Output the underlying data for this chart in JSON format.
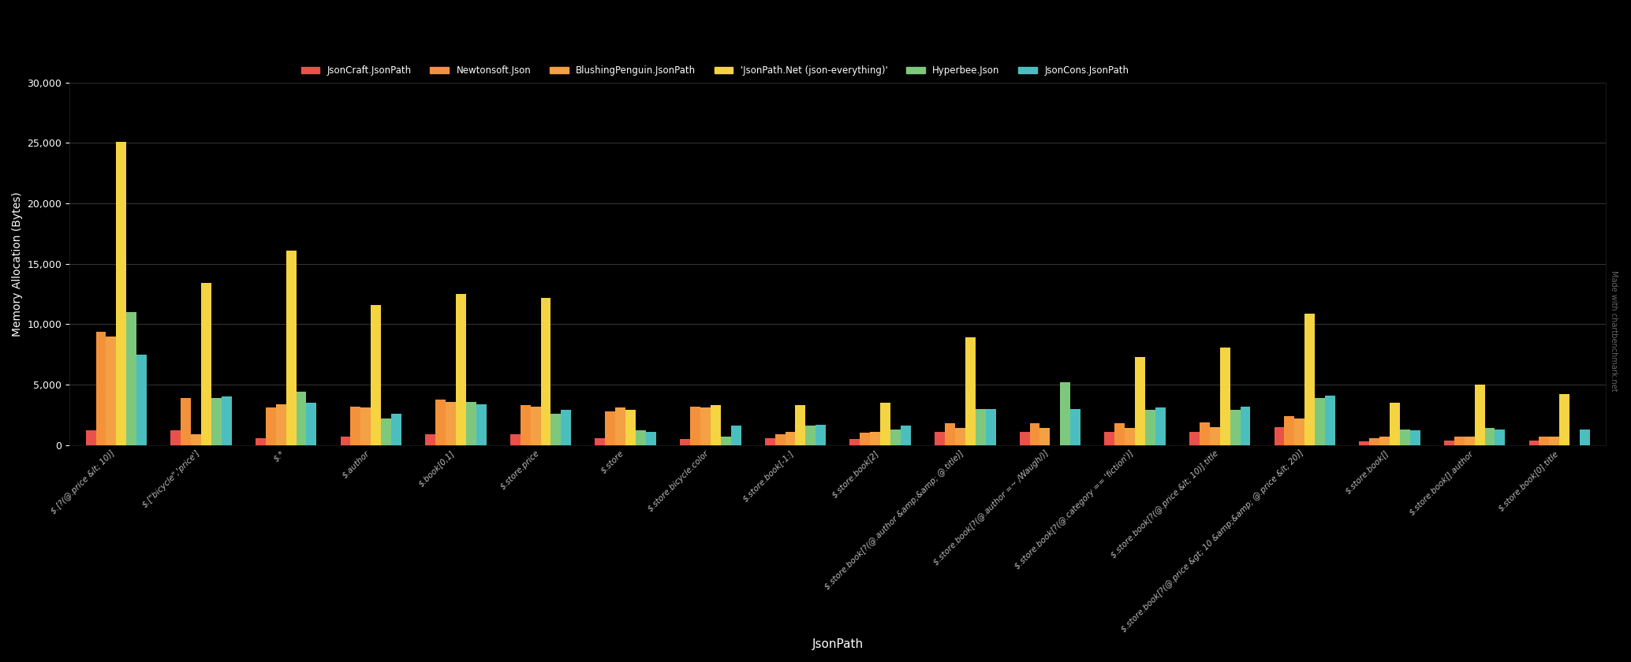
{
  "title": "",
  "xlabel": "JsonPath",
  "ylabel": "Memory Allocation (Bytes)",
  "watermark": "Made with chartbenchmark.net",
  "ylim": [
    0,
    30000
  ],
  "yticks": [
    0,
    5000,
    10000,
    15000,
    20000,
    25000,
    30000
  ],
  "background_color": "#000000",
  "text_color": "#ffffff",
  "grid_color": "#404040",
  "series": [
    {
      "name": "JsonCraft.JsonPath",
      "color": "#e8524a"
    },
    {
      "name": "Newtonsoft.Json",
      "color": "#f4923b"
    },
    {
      "name": "BlushingPenguin.JsonPath",
      "color": "#f4a044"
    },
    {
      "name": "'JsonPath.Net (json-everything)'",
      "color": "#f5d442"
    },
    {
      "name": "Hyperbee.Json",
      "color": "#7ec87e"
    },
    {
      "name": "JsonCons.JsonPath",
      "color": "#4bbfbf"
    }
  ],
  "categories": [
    "$.[?(@.price &lt; 10)]",
    "$.[\"bicycle\",'price']",
    "$.*",
    "$.author",
    "$.book[0,1]",
    "$.store.price",
    "$.store",
    "$.store.bicycle.color",
    "$.store.book[-1:]",
    "$.store.book[2]",
    "$.store.book[?(@.author &amp;&amp; @.title)]",
    "$.store.book[?(@.author =~ /Waugh/)]",
    "$.store.book[?(@.category == 'fiction')]",
    "$.store.book[?(@.price &lt; 10)].title",
    "$.store.book[?(@.price &gt; 10 &amp;&amp; @.price &lt; 20)]",
    "$.store.book[]",
    "$.store.book[].author",
    "$.store.book[0].title"
  ],
  "data": {
    "JsonCraft.JsonPath": [
      1200,
      1200,
      600,
      700,
      900,
      900,
      600,
      500,
      600,
      500,
      1100,
      1100,
      1100,
      1100,
      1500,
      300,
      400,
      400
    ],
    "Newtonsoft.Json": [
      9400,
      3900,
      3100,
      3200,
      3800,
      3300,
      2800,
      3200,
      900,
      1000,
      1800,
      1800,
      1800,
      1900,
      2400,
      600,
      700,
      700
    ],
    "BlushingPenguin.JsonPath": [
      9000,
      900,
      3400,
      3100,
      3600,
      3200,
      3100,
      3100,
      1100,
      1100,
      1400,
      1400,
      1400,
      1500,
      2200,
      700,
      700,
      700
    ],
    "'JsonPath.Net (json-everything)'": [
      25100,
      13400,
      16100,
      11600,
      12500,
      12200,
      2900,
      3300,
      3300,
      3500,
      8900,
      0,
      7300,
      8100,
      10900,
      3500,
      5000,
      4200
    ],
    "Hyperbee.Json": [
      11000,
      3900,
      4400,
      2200,
      3600,
      2600,
      1200,
      700,
      1600,
      1300,
      3000,
      5200,
      2900,
      2900,
      3900,
      1300,
      1400,
      0
    ],
    "JsonCons.JsonPath": [
      7500,
      4000,
      3500,
      2600,
      3400,
      2900,
      1100,
      1600,
      1700,
      1600,
      3000,
      3000,
      3100,
      3200,
      4100,
      1200,
      1300,
      1300
    ]
  }
}
